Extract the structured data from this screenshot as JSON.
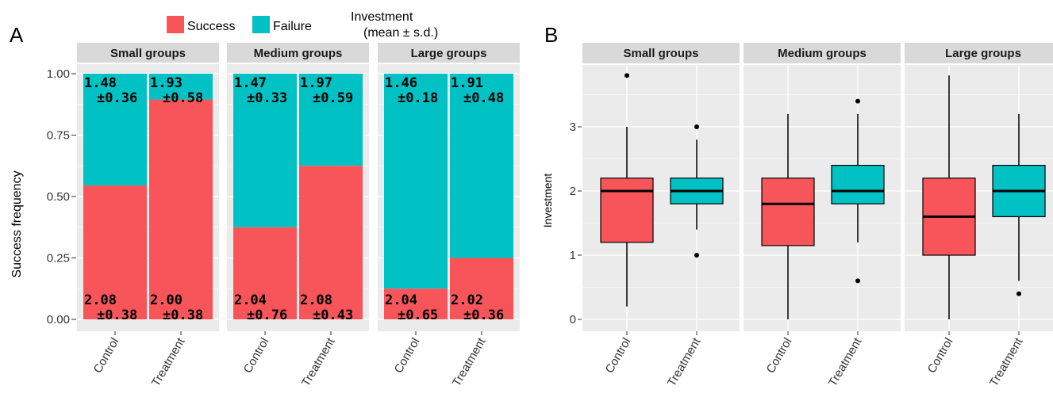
{
  "colors": {
    "success": "#f8555a",
    "failure": "#00c1c4",
    "panel_bg": "#ebebeb",
    "strip_bg": "#d9d9d9",
    "grid": "#ffffff"
  },
  "panel_a": {
    "letter": "A",
    "legend": {
      "success": "Success",
      "failure": "Failure",
      "note_line1": "Investment",
      "note_line2": "(mean ± s.d.)"
    },
    "ylabel": "Success frequency"
  },
  "panel_b": {
    "letter": "B",
    "ylabel": "Investment"
  },
  "chart_data": [
    {
      "type": "bar",
      "subtype": "stacked-proportion",
      "ylabel": "Success frequency",
      "ylim": [
        0,
        1
      ],
      "yticks": [
        "0.00",
        "0.25",
        "0.50",
        "0.75",
        "1.00"
      ],
      "facets": [
        "Small groups",
        "Medium groups",
        "Large groups"
      ],
      "categories": [
        "Control",
        "Treatment"
      ],
      "series": [
        {
          "name": "Success",
          "values": [
            [
              0.545,
              0.895
            ],
            [
              0.375,
              0.625
            ],
            [
              0.125,
              0.25
            ]
          ]
        },
        {
          "name": "Failure",
          "values": [
            [
              0.455,
              0.105
            ],
            [
              0.625,
              0.375
            ],
            [
              0.875,
              0.75
            ]
          ]
        }
      ],
      "annotations": {
        "failure": [
          [
            [
              "1.48",
              "±0.36"
            ],
            [
              "1.93",
              "±0.58"
            ]
          ],
          [
            [
              "1.47",
              "±0.33"
            ],
            [
              "1.97",
              "±0.59"
            ]
          ],
          [
            [
              "1.46",
              "±0.18"
            ],
            [
              "1.91",
              "±0.48"
            ]
          ]
        ],
        "success": [
          [
            [
              "2.08",
              "±0.38"
            ],
            [
              "2.00",
              "±0.38"
            ]
          ],
          [
            [
              "2.04",
              "±0.76"
            ],
            [
              "2.08",
              "±0.43"
            ]
          ],
          [
            [
              "2.04",
              "±0.65"
            ],
            [
              "2.02",
              "±0.36"
            ]
          ]
        ]
      }
    },
    {
      "type": "boxplot",
      "ylabel": "Investment",
      "ylim": [
        -0.1,
        4.0
      ],
      "yticks": [
        "0",
        "1",
        "2",
        "3"
      ],
      "facets": [
        "Small groups",
        "Medium groups",
        "Large groups"
      ],
      "categories": [
        "Control",
        "Treatment"
      ],
      "boxes": [
        [
          {
            "min": 0.2,
            "q1": 1.2,
            "median": 2.0,
            "q3": 2.2,
            "max": 3.0,
            "outliers": [
              3.8
            ]
          },
          {
            "min": 1.4,
            "q1": 1.8,
            "median": 2.0,
            "q3": 2.2,
            "max": 2.8,
            "outliers": [
              3.0,
              1.0
            ]
          }
        ],
        [
          {
            "min": 0.0,
            "q1": 1.15,
            "median": 1.8,
            "q3": 2.2,
            "max": 3.2,
            "outliers": []
          },
          {
            "min": 1.2,
            "q1": 1.8,
            "median": 2.0,
            "q3": 2.4,
            "max": 3.2,
            "outliers": [
              3.4,
              0.6
            ]
          }
        ],
        [
          {
            "min": 0.0,
            "q1": 1.0,
            "median": 1.6,
            "q3": 2.2,
            "max": 3.8,
            "outliers": []
          },
          {
            "min": 0.6,
            "q1": 1.6,
            "median": 2.0,
            "q3": 2.4,
            "max": 3.2,
            "outliers": [
              0.4
            ]
          }
        ]
      ]
    }
  ]
}
